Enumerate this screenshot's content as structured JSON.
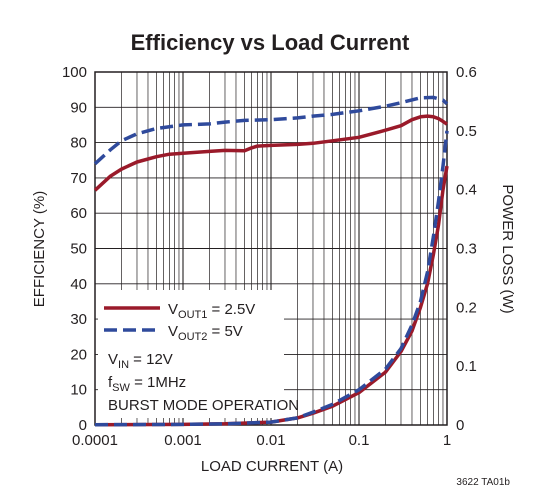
{
  "chart_data": {
    "type": "line",
    "title": "Efficiency vs Load Current",
    "xlabel": "LOAD CURRENT (A)",
    "ylabel_left": "EFFICIENCY (%)",
    "ylabel_right": "POWER LOSS (W)",
    "x_scale": "log",
    "xlim": [
      0.0001,
      1
    ],
    "ylim_left": [
      0,
      100
    ],
    "ylim_right": [
      0,
      0.6
    ],
    "x_ticks": [
      "0.0001",
      "0.001",
      "0.01",
      "0.1",
      "1"
    ],
    "y_left_ticks": [
      "0",
      "10",
      "20",
      "30",
      "40",
      "50",
      "60",
      "70",
      "80",
      "90",
      "100"
    ],
    "y_right_ticks": [
      "0",
      "0.1",
      "0.2",
      "0.3",
      "0.4",
      "0.5",
      "0.6"
    ],
    "grid": true,
    "legend_position": "lower-left",
    "series": [
      {
        "name": "VOUT1 = 2.5V",
        "legend_main": "V",
        "legend_sub": "OUT1",
        "legend_rest": " = 2.5V",
        "axis": "left",
        "style": "solid",
        "color": "#9a1a2a",
        "x": [
          0.0001,
          0.00015,
          0.0002,
          0.0003,
          0.0005,
          0.0007,
          0.001,
          0.002,
          0.003,
          0.005,
          0.006,
          0.007,
          0.01,
          0.02,
          0.03,
          0.05,
          0.1,
          0.2,
          0.3,
          0.4,
          0.5,
          0.6,
          0.7,
          0.8,
          0.9,
          1.0
        ],
        "y": [
          66.5,
          70.5,
          72.5,
          74.5,
          76.0,
          76.7,
          77.0,
          77.5,
          77.8,
          77.7,
          78.5,
          79.0,
          79.2,
          79.5,
          79.8,
          80.5,
          81.5,
          83.5,
          84.8,
          86.5,
          87.3,
          87.5,
          87.3,
          86.8,
          86.0,
          85.2
        ]
      },
      {
        "name": "VOUT2 = 5V",
        "legend_main": "V",
        "legend_sub": "OUT2",
        "legend_rest": " = 5V",
        "axis": "left",
        "style": "dashed",
        "color": "#2f4a9c",
        "x": [
          0.0001,
          0.00015,
          0.0002,
          0.0003,
          0.0005,
          0.001,
          0.002,
          0.003,
          0.005,
          0.01,
          0.02,
          0.03,
          0.05,
          0.1,
          0.2,
          0.3,
          0.5,
          0.7,
          0.9,
          1.0
        ],
        "y": [
          74.0,
          78.0,
          80.5,
          82.5,
          84.0,
          85.0,
          85.3,
          85.8,
          86.3,
          86.5,
          87.0,
          87.5,
          88.0,
          89.0,
          90.3,
          91.3,
          92.7,
          92.8,
          92.0,
          91.0
        ]
      },
      {
        "name": "VOUT1 = 2.5V (power loss)",
        "axis": "right",
        "style": "solid",
        "color": "#9a1a2a",
        "x": [
          0.0001,
          0.001,
          0.003,
          0.01,
          0.02,
          0.03,
          0.05,
          0.1,
          0.2,
          0.3,
          0.4,
          0.5,
          0.6,
          0.7,
          0.8,
          0.9,
          1.0
        ],
        "y": [
          0.0005,
          0.001,
          0.002,
          0.005,
          0.012,
          0.02,
          0.032,
          0.055,
          0.09,
          0.125,
          0.16,
          0.2,
          0.24,
          0.29,
          0.34,
          0.4,
          0.44
        ]
      },
      {
        "name": "VOUT2 = 5V (power loss)",
        "axis": "right",
        "style": "dashed",
        "color": "#2f4a9c",
        "x": [
          0.0001,
          0.001,
          0.003,
          0.01,
          0.02,
          0.03,
          0.05,
          0.1,
          0.2,
          0.3,
          0.4,
          0.5,
          0.6,
          0.7,
          0.8,
          0.9,
          1.0
        ],
        "y": [
          0.0005,
          0.001,
          0.002,
          0.005,
          0.012,
          0.022,
          0.035,
          0.06,
          0.095,
          0.13,
          0.17,
          0.21,
          0.26,
          0.32,
          0.38,
          0.44,
          0.5
        ]
      }
    ],
    "conditions": {
      "vin_main": "V",
      "vin_sub": "IN",
      "vin_rest": " = 12V",
      "fsw_main": "f",
      "fsw_sub": "SW",
      "fsw_rest": " = 1MHz",
      "mode": "BURST MODE OPERATION"
    }
  },
  "figure_id": "3622 TA01b"
}
